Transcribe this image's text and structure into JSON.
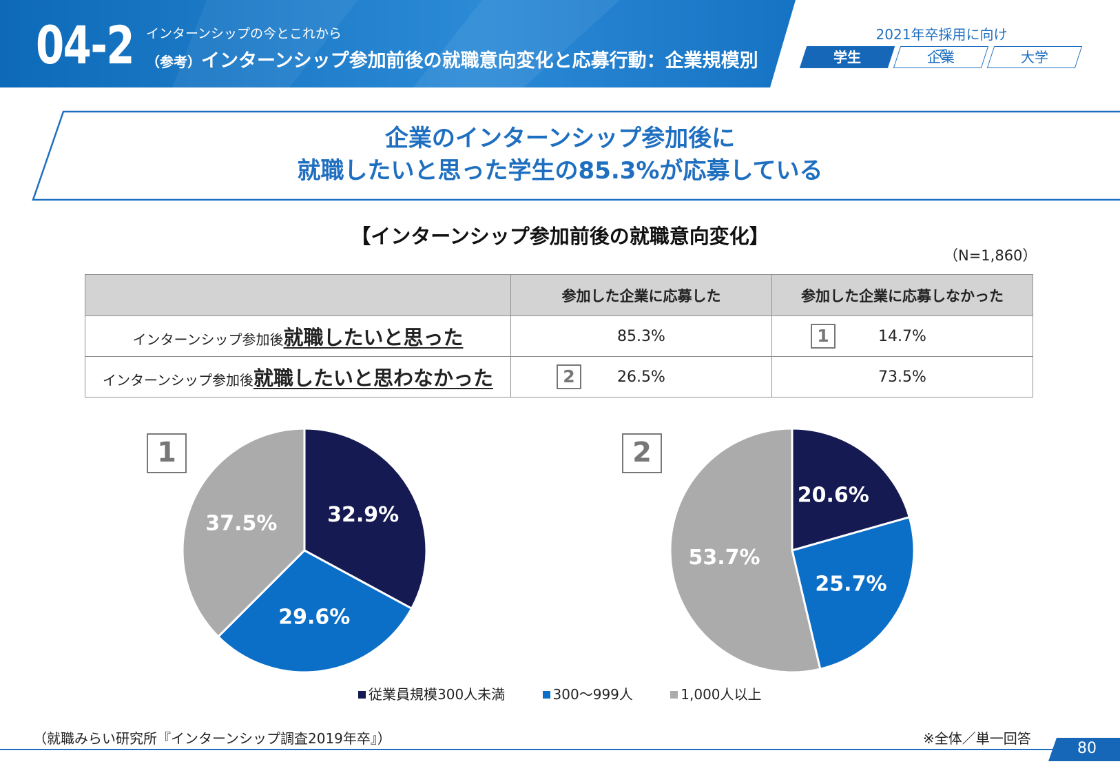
{
  "header": {
    "section_number": "04-2",
    "section_sub": "インターンシップの今とこれから",
    "title_prefix": "（参考）",
    "title": "インターンシップ参加前後の就職意向変化と応募行動：企業規模別",
    "target_label": "2021年卒採用に向けて",
    "tabs": [
      {
        "label": "学生",
        "active": true
      },
      {
        "label": "企業",
        "active": false
      },
      {
        "label": "大学",
        "active": false
      }
    ]
  },
  "headline": {
    "line1": "企業のインターンシップ参加後に",
    "line2": "就職したいと思った学生の85.3%が応募している"
  },
  "table_title": "【インターンシップ参加前後の就職意向変化】",
  "n_label": "（N=1,860）",
  "table": {
    "columns": [
      "",
      "参加した企業に応募した",
      "参加した企業に応募しなかった"
    ],
    "rows": [
      {
        "label_small": "インターンシップ参加後",
        "label_big": "就職したいと思った",
        "values": [
          "85.3%",
          "14.7%"
        ],
        "mark": "1",
        "mark_col": 1
      },
      {
        "label_small": "インターンシップ参加後",
        "label_big": "就職したいと思わなかった",
        "values": [
          "26.5%",
          "73.5%"
        ],
        "mark": "2",
        "mark_col": 0
      }
    ]
  },
  "chart_data": [
    {
      "type": "pie",
      "marker": "1",
      "categories": [
        "従業員規模300人未満",
        "300〜999人",
        "1,000人以上"
      ],
      "values": [
        32.9,
        29.6,
        37.5
      ],
      "labels": [
        "32.9%",
        "29.6%",
        "37.5%"
      ],
      "colors": [
        "#151a52",
        "#0b6ec7",
        "#ababab"
      ]
    },
    {
      "type": "pie",
      "marker": "2",
      "categories": [
        "従業員規模300人未満",
        "300〜999人",
        "1,000人以上"
      ],
      "values": [
        20.6,
        25.7,
        53.7
      ],
      "labels": [
        "20.6%",
        "25.7%",
        "53.7%"
      ],
      "colors": [
        "#151a52",
        "#0b6ec7",
        "#ababab"
      ]
    }
  ],
  "legend": {
    "items": [
      {
        "label": "従業員規模300人未満",
        "color": "#151a52"
      },
      {
        "label": "300〜999人",
        "color": "#0b6ec7"
      },
      {
        "label": "1,000人以上",
        "color": "#ababab"
      }
    ]
  },
  "footer": {
    "source": "（就職みらい研究所『インターンシップ調査2019年卒』）",
    "note": "※全体／単一回答",
    "page": "80"
  },
  "colors": {
    "brand_blue": "#1f6fc0",
    "header_blue": "#1a78c8"
  }
}
